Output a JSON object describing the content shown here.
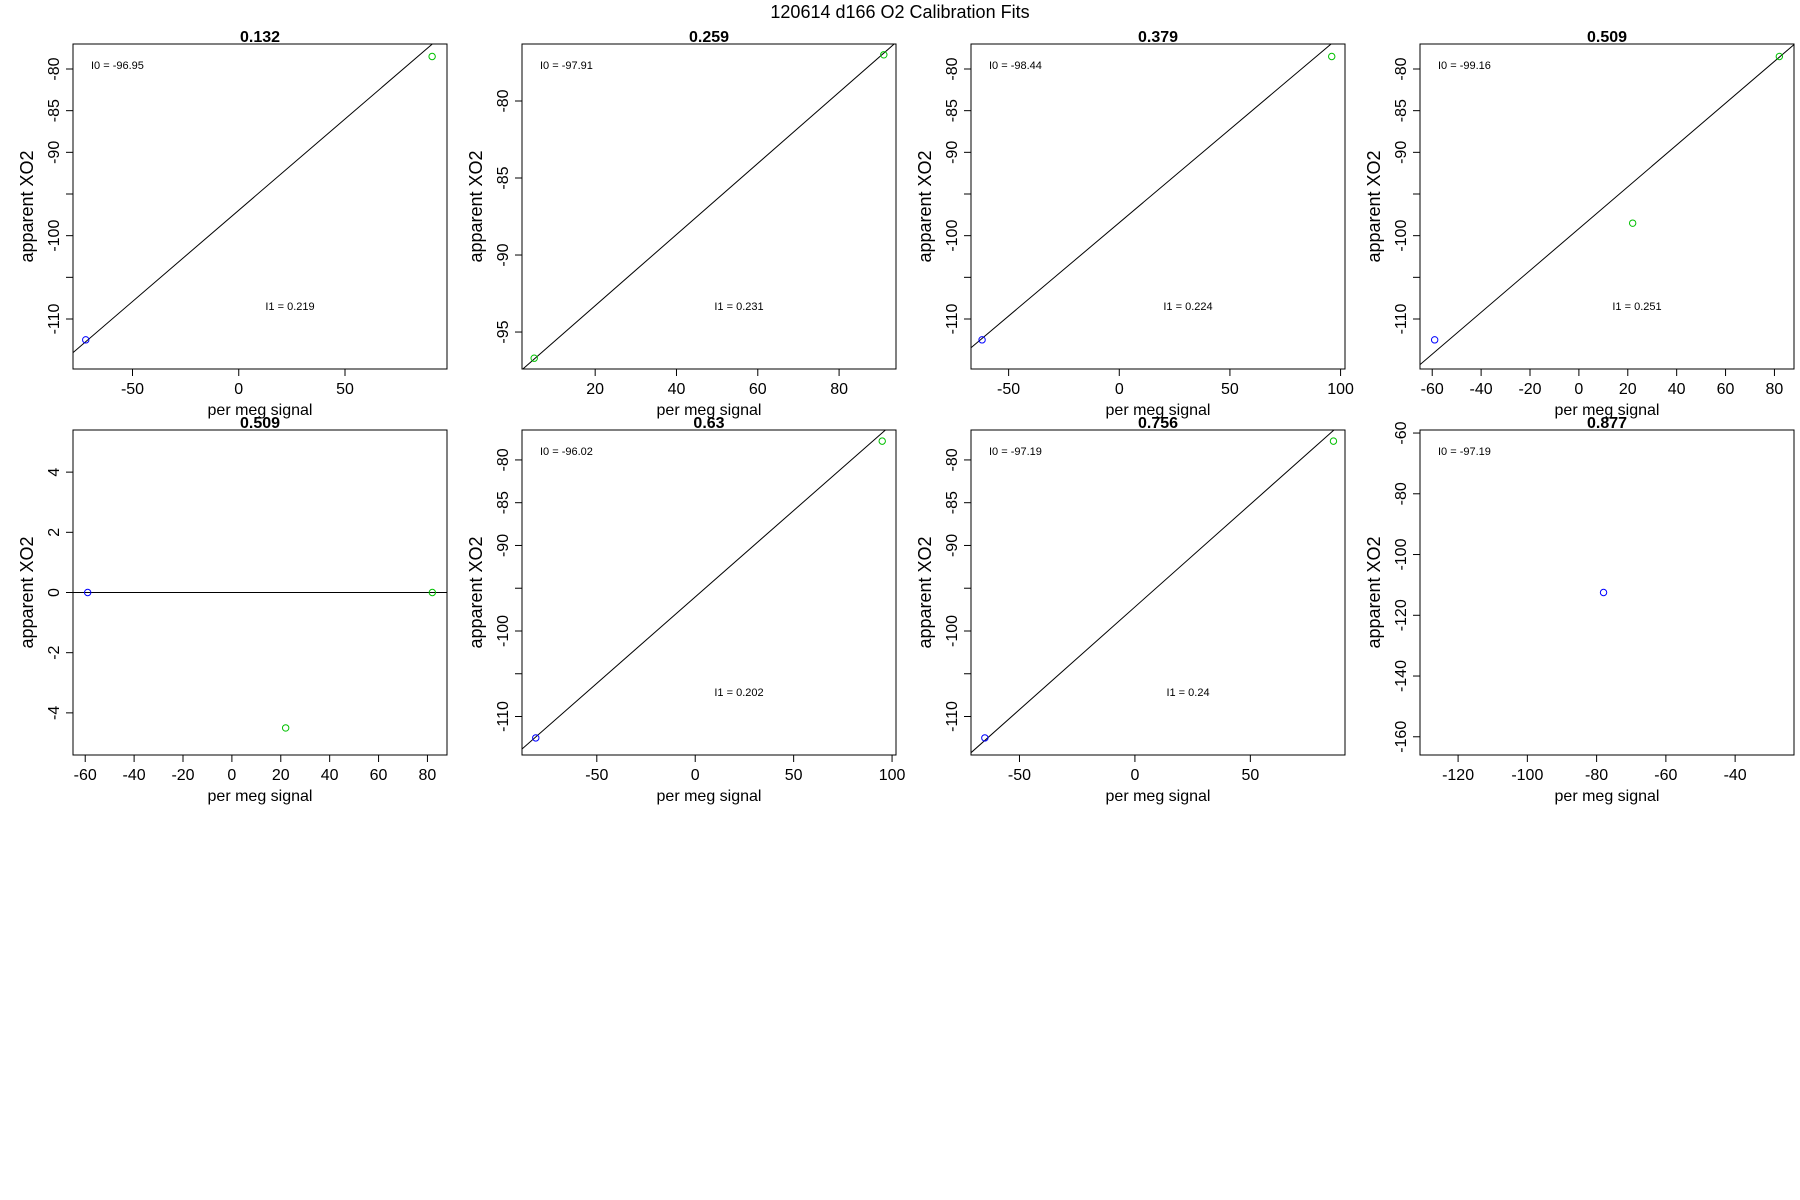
{
  "figure_title": "120614   d166   O2 Calibration Fits",
  "colors": {
    "axis": "#000000",
    "fit_line": "#000000",
    "low_point": "#0000ff",
    "high_point": "#00c000"
  },
  "chart_data": [
    {
      "type": "scatter",
      "title": "0.132",
      "xlabel": "per meg signal",
      "ylabel": "apparent XO2",
      "xlim": [
        -78,
        98
      ],
      "ylim": [
        -116,
        -77
      ],
      "xticks": [
        -50,
        0,
        50
      ],
      "yticks": [
        -80,
        -85,
        -90,
        -95,
        -100,
        -105,
        -110
      ],
      "ytick_labels": [
        "-80",
        "-85",
        "-90",
        "",
        "-100",
        "",
        "-110"
      ],
      "points": [
        {
          "x": -72,
          "y": -112.5,
          "color": "blue"
        },
        {
          "x": 91,
          "y": -78.5,
          "color": "green"
        }
      ],
      "fit_line": {
        "intercept": -96.95,
        "slope": 0.219
      },
      "annotations": {
        "I0": "I0 =  -96.95",
        "I1": "I1 =  0.219"
      }
    },
    {
      "type": "scatter",
      "title": "0.259",
      "xlabel": "per meg signal",
      "ylabel": "apparent XO2",
      "xlim": [
        2,
        94
      ],
      "ylim": [
        -97.4,
        -76.3
      ],
      "xticks": [
        20,
        40,
        60,
        80
      ],
      "yticks": [
        -80,
        -85,
        -90,
        -95
      ],
      "ytick_labels": [
        "-80",
        "-85",
        "-90",
        "-95"
      ],
      "points": [
        {
          "x": 5,
          "y": -96.7,
          "color": "green"
        },
        {
          "x": 91,
          "y": -77.0,
          "color": "green"
        }
      ],
      "fit_line": {
        "intercept": -97.91,
        "slope": 0.231
      },
      "annotations": {
        "I0": "I0 =  -97.91",
        "I1": "I1 =  0.231"
      }
    },
    {
      "type": "scatter",
      "title": "0.379",
      "xlabel": "per meg signal",
      "ylabel": "apparent XO2",
      "xlim": [
        -67,
        102
      ],
      "ylim": [
        -116,
        -77
      ],
      "xticks": [
        -50,
        0,
        50,
        100
      ],
      "yticks": [
        -80,
        -85,
        -90,
        -95,
        -100,
        -105,
        -110
      ],
      "ytick_labels": [
        "-80",
        "-85",
        "-90",
        "",
        "-100",
        "",
        "-110"
      ],
      "points": [
        {
          "x": -62,
          "y": -112.5,
          "color": "blue"
        },
        {
          "x": 96,
          "y": -78.5,
          "color": "green"
        }
      ],
      "fit_line": {
        "intercept": -98.44,
        "slope": 0.224
      },
      "annotations": {
        "I0": "I0 =  -98.44",
        "I1": "I1 =  0.224"
      }
    },
    {
      "type": "scatter",
      "title": "0.509",
      "xlabel": "per meg signal",
      "ylabel": "apparent XO2",
      "xlim": [
        -65,
        88
      ],
      "ylim": [
        -116,
        -77
      ],
      "xticks": [
        -60,
        -40,
        -20,
        0,
        20,
        40,
        60,
        80
      ],
      "yticks": [
        -80,
        -85,
        -90,
        -95,
        -100,
        -105,
        -110
      ],
      "ytick_labels": [
        "-80",
        "-85",
        "-90",
        "",
        "-100",
        "",
        "-110"
      ],
      "points": [
        {
          "x": -59,
          "y": -112.5,
          "color": "blue"
        },
        {
          "x": 22,
          "y": -98.5,
          "color": "green"
        },
        {
          "x": 82,
          "y": -78.5,
          "color": "green"
        }
      ],
      "fit_line": {
        "intercept": -99.16,
        "slope": 0.251
      },
      "annotations": {
        "I0": "I0 =  -99.16",
        "I1": "I1 =  0.251"
      }
    },
    {
      "type": "scatter",
      "title": "0.509",
      "xlabel": "per meg signal",
      "ylabel": "apparent XO2",
      "xlim": [
        -65,
        88
      ],
      "ylim": [
        -5.4,
        5.4
      ],
      "xticks": [
        -60,
        -40,
        -20,
        0,
        20,
        40,
        60,
        80
      ],
      "yticks": [
        4,
        2,
        0,
        -2,
        -4
      ],
      "ytick_labels": [
        "4",
        "2",
        "0",
        "-2",
        "-4"
      ],
      "points": [
        {
          "x": -59,
          "y": 0,
          "color": "blue"
        },
        {
          "x": 82,
          "y": 0,
          "color": "green"
        },
        {
          "x": 22,
          "y": -4.5,
          "color": "green"
        }
      ],
      "fit_line": {
        "intercept": 0,
        "slope": 0
      },
      "annotations": {
        "I0": "",
        "I1": ""
      }
    },
    {
      "type": "scatter",
      "title": "0.63",
      "xlabel": "per meg signal",
      "ylabel": "apparent XO2",
      "xlim": [
        -88,
        102
      ],
      "ylim": [
        -114.5,
        -76.5
      ],
      "xticks": [
        -50,
        0,
        50,
        100
      ],
      "yticks": [
        -80,
        -85,
        -90,
        -95,
        -100,
        -105,
        -110
      ],
      "ytick_labels": [
        "-80",
        "-85",
        "-90",
        "",
        "-100",
        "",
        "-110"
      ],
      "points": [
        {
          "x": -81,
          "y": -112.5,
          "color": "blue"
        },
        {
          "x": 95,
          "y": -77.8,
          "color": "green"
        }
      ],
      "fit_line": {
        "intercept": -96.02,
        "slope": 0.202
      },
      "annotations": {
        "I0": "I0 =  -96.02",
        "I1": "I1 =  0.202"
      }
    },
    {
      "type": "scatter",
      "title": "0.756",
      "xlabel": "per meg signal",
      "ylabel": "apparent XO2",
      "xlim": [
        -71,
        91
      ],
      "ylim": [
        -114.5,
        -76.5
      ],
      "xticks": [
        -50,
        0,
        50
      ],
      "yticks": [
        -80,
        -85,
        -90,
        -95,
        -100,
        -105,
        -110
      ],
      "ytick_labels": [
        "-80",
        "-85",
        "-90",
        "",
        "-100",
        "",
        "-110"
      ],
      "points": [
        {
          "x": -65,
          "y": -112.5,
          "color": "blue"
        },
        {
          "x": 86,
          "y": -77.8,
          "color": "green"
        }
      ],
      "fit_line": {
        "intercept": -97.19,
        "slope": 0.24
      },
      "annotations": {
        "I0": "I0 =  -97.19",
        "I1": "I1 =  0.24"
      }
    },
    {
      "type": "scatter",
      "title": "0.877",
      "xlabel": "per meg signal",
      "ylabel": "apparent XO2",
      "xlim": [
        -131,
        -23
      ],
      "ylim": [
        -166,
        -59
      ],
      "xticks": [
        -120,
        -100,
        -80,
        -60,
        -40
      ],
      "yticks": [
        -60,
        -80,
        -100,
        -120,
        -140,
        -160
      ],
      "ytick_labels": [
        "-60",
        "-80",
        "-100",
        "-120",
        "-140",
        "-160"
      ],
      "points": [
        {
          "x": -78,
          "y": -112.5,
          "color": "blue"
        }
      ],
      "fit_line": null,
      "annotations": {
        "I0": "I0 =  -97.19",
        "I1": ""
      }
    }
  ]
}
